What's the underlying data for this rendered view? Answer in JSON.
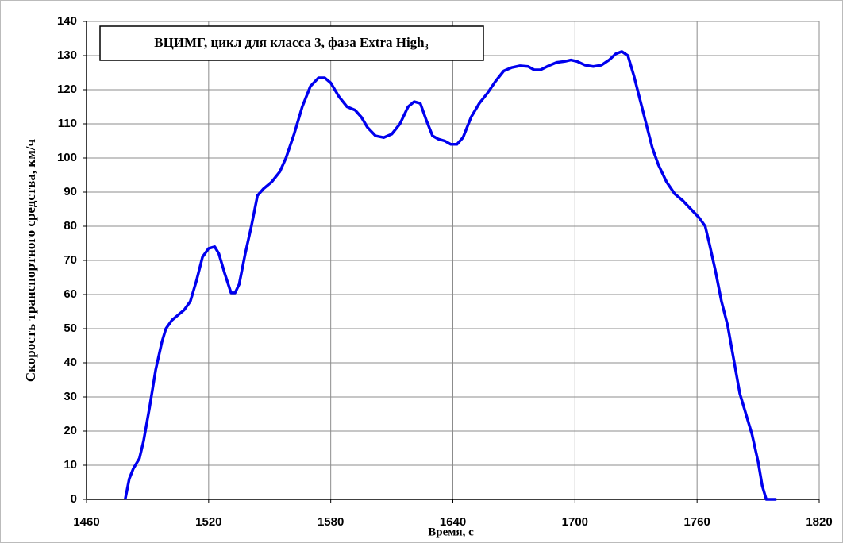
{
  "chart_data": {
    "type": "line",
    "title": "ВЦИМГ, цикл для класса 3, фаза Extra High₃",
    "x_label": "Время, с",
    "y_label": "Скорость транспортного средства, км/ч",
    "xlim": [
      1460,
      1820
    ],
    "xticks": [
      1460,
      1520,
      1580,
      1640,
      1700,
      1760,
      1820
    ],
    "ylim": [
      0,
      140
    ],
    "yticks": [
      0,
      10,
      20,
      30,
      40,
      50,
      60,
      70,
      80,
      90,
      100,
      110,
      120,
      130,
      140
    ],
    "grid": true,
    "x": [
      1479,
      1481,
      1483,
      1486,
      1488,
      1491,
      1494,
      1497,
      1499,
      1502,
      1505,
      1508,
      1511,
      1514,
      1517,
      1520,
      1523,
      1525,
      1528,
      1531,
      1533,
      1535,
      1538,
      1541,
      1544,
      1547,
      1551,
      1555,
      1558,
      1562,
      1566,
      1570,
      1574,
      1577,
      1580,
      1584,
      1588,
      1592,
      1595,
      1598,
      1602,
      1606,
      1610,
      1614,
      1618,
      1621,
      1624,
      1627,
      1630,
      1633,
      1636,
      1639,
      1642,
      1645,
      1649,
      1653,
      1657,
      1661,
      1665,
      1669,
      1673,
      1677,
      1680,
      1683,
      1687,
      1691,
      1695,
      1698,
      1701,
      1705,
      1709,
      1713,
      1717,
      1720,
      1723,
      1726,
      1729,
      1732,
      1735,
      1738,
      1741,
      1745,
      1749,
      1753,
      1757,
      1761,
      1764,
      1766,
      1769,
      1772,
      1775,
      1778,
      1781,
      1784,
      1787,
      1790,
      1792,
      1794,
      1799
    ],
    "series": [
      {
        "name": "Скорость",
        "color": "#0000ee",
        "values": [
          0,
          6,
          9,
          12,
          17,
          27,
          38,
          46,
          50,
          52.5,
          54,
          55.5,
          58,
          64,
          71,
          73.5,
          74,
          72,
          66,
          60.5,
          60.5,
          63,
          72,
          80,
          89,
          91,
          93,
          96,
          100,
          107,
          115,
          121,
          123.5,
          123.5,
          122,
          118,
          115,
          114,
          112,
          109,
          106.5,
          106,
          107,
          110,
          115,
          116.5,
          116,
          111,
          106.5,
          105.5,
          105,
          104,
          104,
          106,
          112,
          116,
          119,
          122.5,
          125.5,
          126.5,
          127,
          126.8,
          125.8,
          125.8,
          127,
          128,
          128.3,
          128.7,
          128.3,
          127.2,
          126.8,
          127.2,
          128.8,
          130.5,
          131.2,
          130,
          124,
          117,
          110,
          103,
          98,
          93,
          89.5,
          87.5,
          85,
          82.5,
          80,
          75,
          67,
          58,
          51,
          41,
          31,
          25,
          19,
          11,
          4,
          0,
          0
        ]
      }
    ]
  }
}
